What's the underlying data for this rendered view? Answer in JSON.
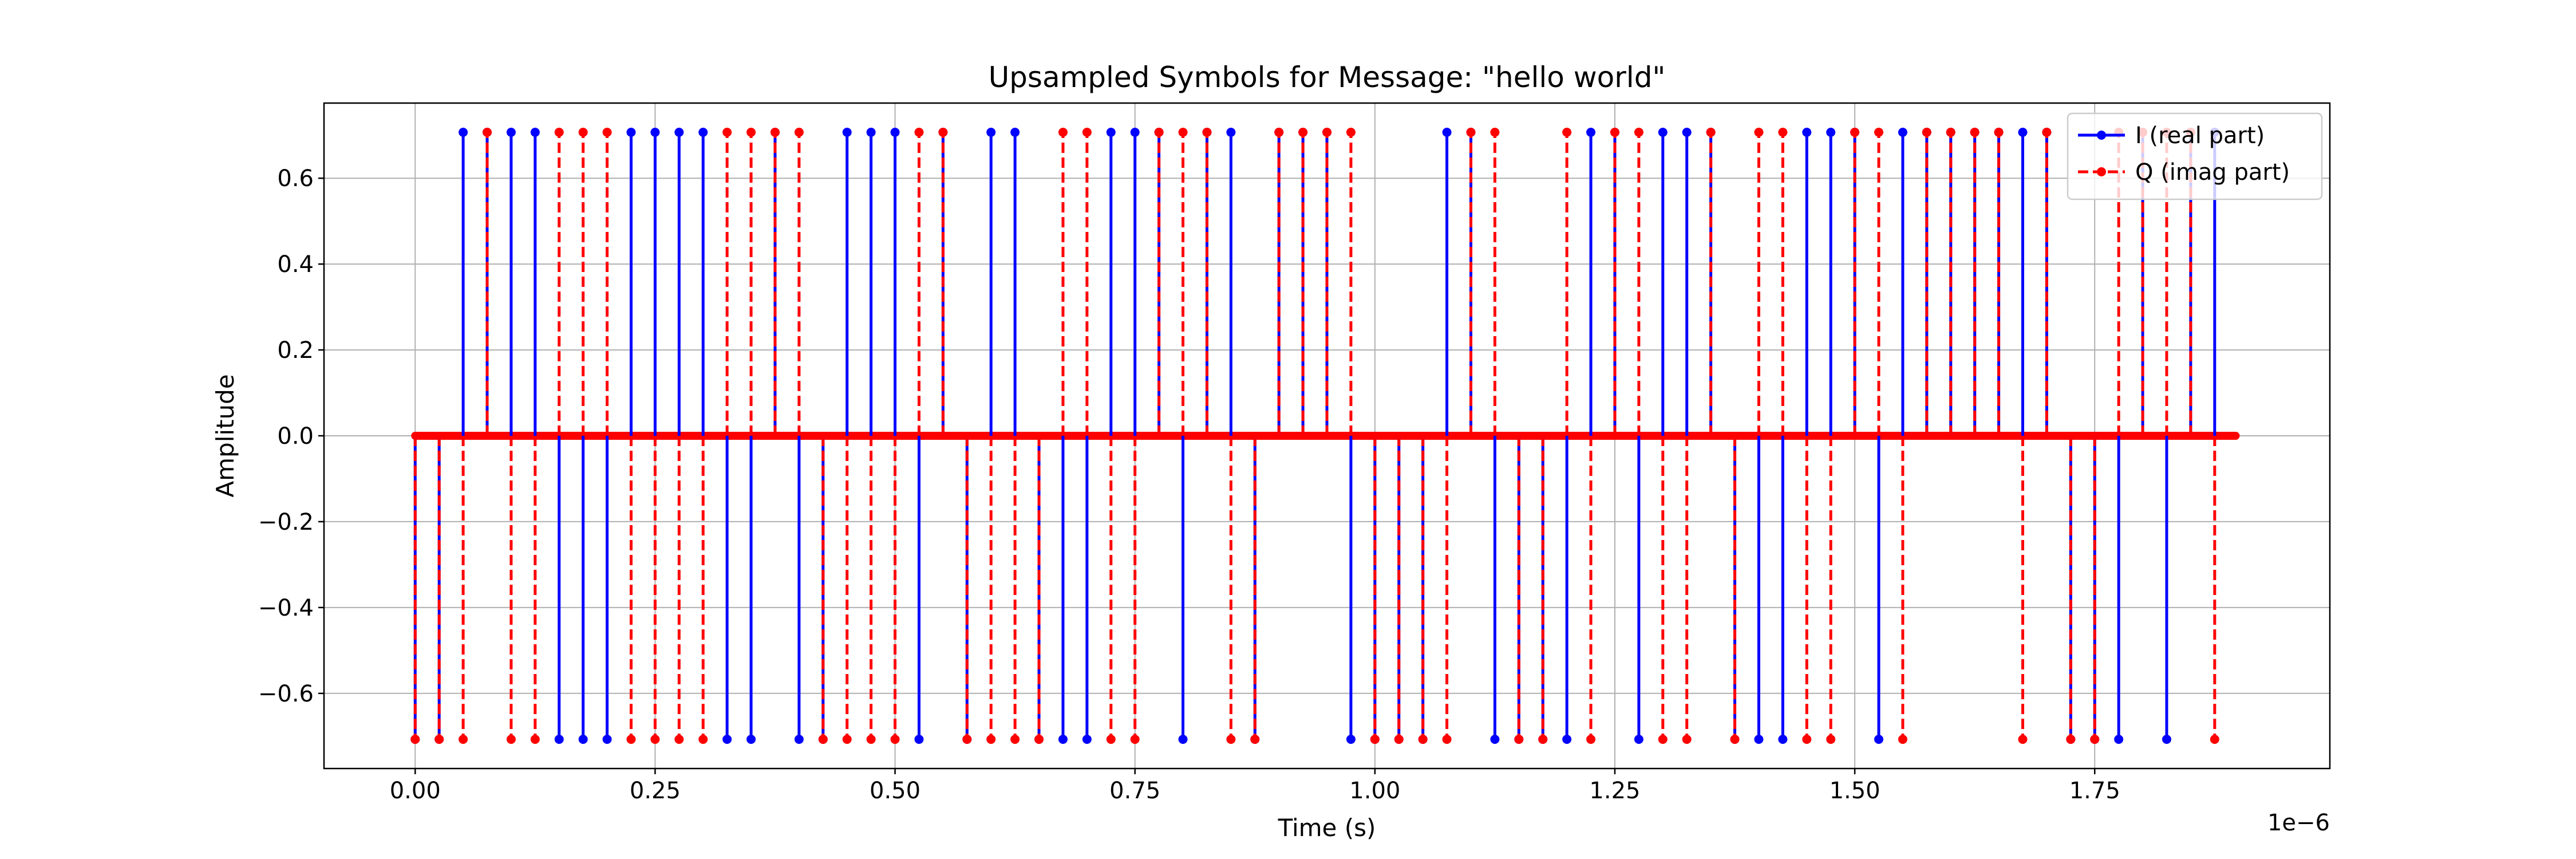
{
  "chart_data": {
    "type": "stem",
    "title": "Upsampled Symbols for Message: \"hello world\"",
    "xlabel": "Time (s)",
    "ylabel": "Amplitude",
    "x_scale_label": "1e−6",
    "x_scale": 1e-06,
    "xlim": [
      -0.095,
      1.995
    ],
    "ylim": [
      -0.775,
      0.775
    ],
    "x_ticks": [
      0.0,
      0.25,
      0.5,
      0.75,
      1.0,
      1.25,
      1.5,
      1.75
    ],
    "x_tick_labels": [
      "0.00",
      "0.25",
      "0.50",
      "0.75",
      "1.00",
      "1.25",
      "1.50",
      "1.75"
    ],
    "y_ticks": [
      -0.6,
      -0.4,
      -0.2,
      0.0,
      0.2,
      0.4,
      0.6
    ],
    "y_tick_labels": [
      "−0.6",
      "−0.4",
      "−0.2",
      "0.0",
      "0.2",
      "0.4",
      "0.6"
    ],
    "grid": true,
    "legend_position": "top-right",
    "sample_step": 0.003125,
    "sample_count": 608,
    "symbol_step": 0.025,
    "symbol_start": 0.0,
    "series": [
      {
        "name": "I (real part)",
        "legend_label": "I (real part)",
        "color": "#0000ff",
        "linestyle": "solid",
        "symbol_values": [
          -0.707,
          -0.707,
          0.707,
          0.707,
          0.707,
          0.707,
          -0.707,
          -0.707,
          -0.707,
          0.707,
          0.707,
          0.707,
          0.707,
          -0.707,
          -0.707,
          0.707,
          -0.707,
          -0.707,
          0.707,
          0.707,
          0.707,
          -0.707,
          0.707,
          -0.707,
          0.707,
          0.707,
          -0.707,
          -0.707,
          -0.707,
          0.707,
          0.707,
          0.707,
          -0.707,
          0.707,
          0.707,
          -0.707,
          0.707,
          0.707,
          0.707,
          -0.707,
          -0.707,
          -0.707,
          -0.707,
          0.707,
          0.707,
          -0.707,
          -0.707,
          -0.707,
          -0.707,
          0.707,
          0.707,
          -0.707,
          0.707,
          0.707,
          0.707,
          -0.707,
          -0.707,
          -0.707,
          0.707,
          0.707,
          0.707,
          -0.707,
          0.707,
          0.707,
          0.707,
          0.707,
          0.707,
          0.707,
          0.707,
          -0.707,
          -0.707,
          -0.707,
          0.707,
          -0.707,
          0.707,
          0.707
        ]
      },
      {
        "name": "Q (imag part)",
        "legend_label": "Q (imag part)",
        "color": "#ff0000",
        "linestyle": "dashed",
        "symbol_values": [
          -0.707,
          -0.707,
          -0.707,
          0.707,
          -0.707,
          -0.707,
          0.707,
          0.707,
          0.707,
          -0.707,
          -0.707,
          -0.707,
          -0.707,
          0.707,
          0.707,
          0.707,
          0.707,
          -0.707,
          -0.707,
          -0.707,
          -0.707,
          0.707,
          0.707,
          -0.707,
          -0.707,
          -0.707,
          -0.707,
          0.707,
          0.707,
          -0.707,
          -0.707,
          0.707,
          0.707,
          0.707,
          -0.707,
          -0.707,
          0.707,
          0.707,
          0.707,
          0.707,
          -0.707,
          -0.707,
          -0.707,
          -0.707,
          0.707,
          0.707,
          -0.707,
          -0.707,
          0.707,
          -0.707,
          0.707,
          0.707,
          -0.707,
          -0.707,
          0.707,
          -0.707,
          0.707,
          0.707,
          -0.707,
          -0.707,
          0.707,
          0.707,
          -0.707,
          0.707,
          0.707,
          0.707,
          0.707,
          -0.707,
          0.707,
          -0.707,
          -0.707,
          0.707,
          0.707,
          0.707,
          0.707,
          -0.707
        ]
      }
    ]
  }
}
